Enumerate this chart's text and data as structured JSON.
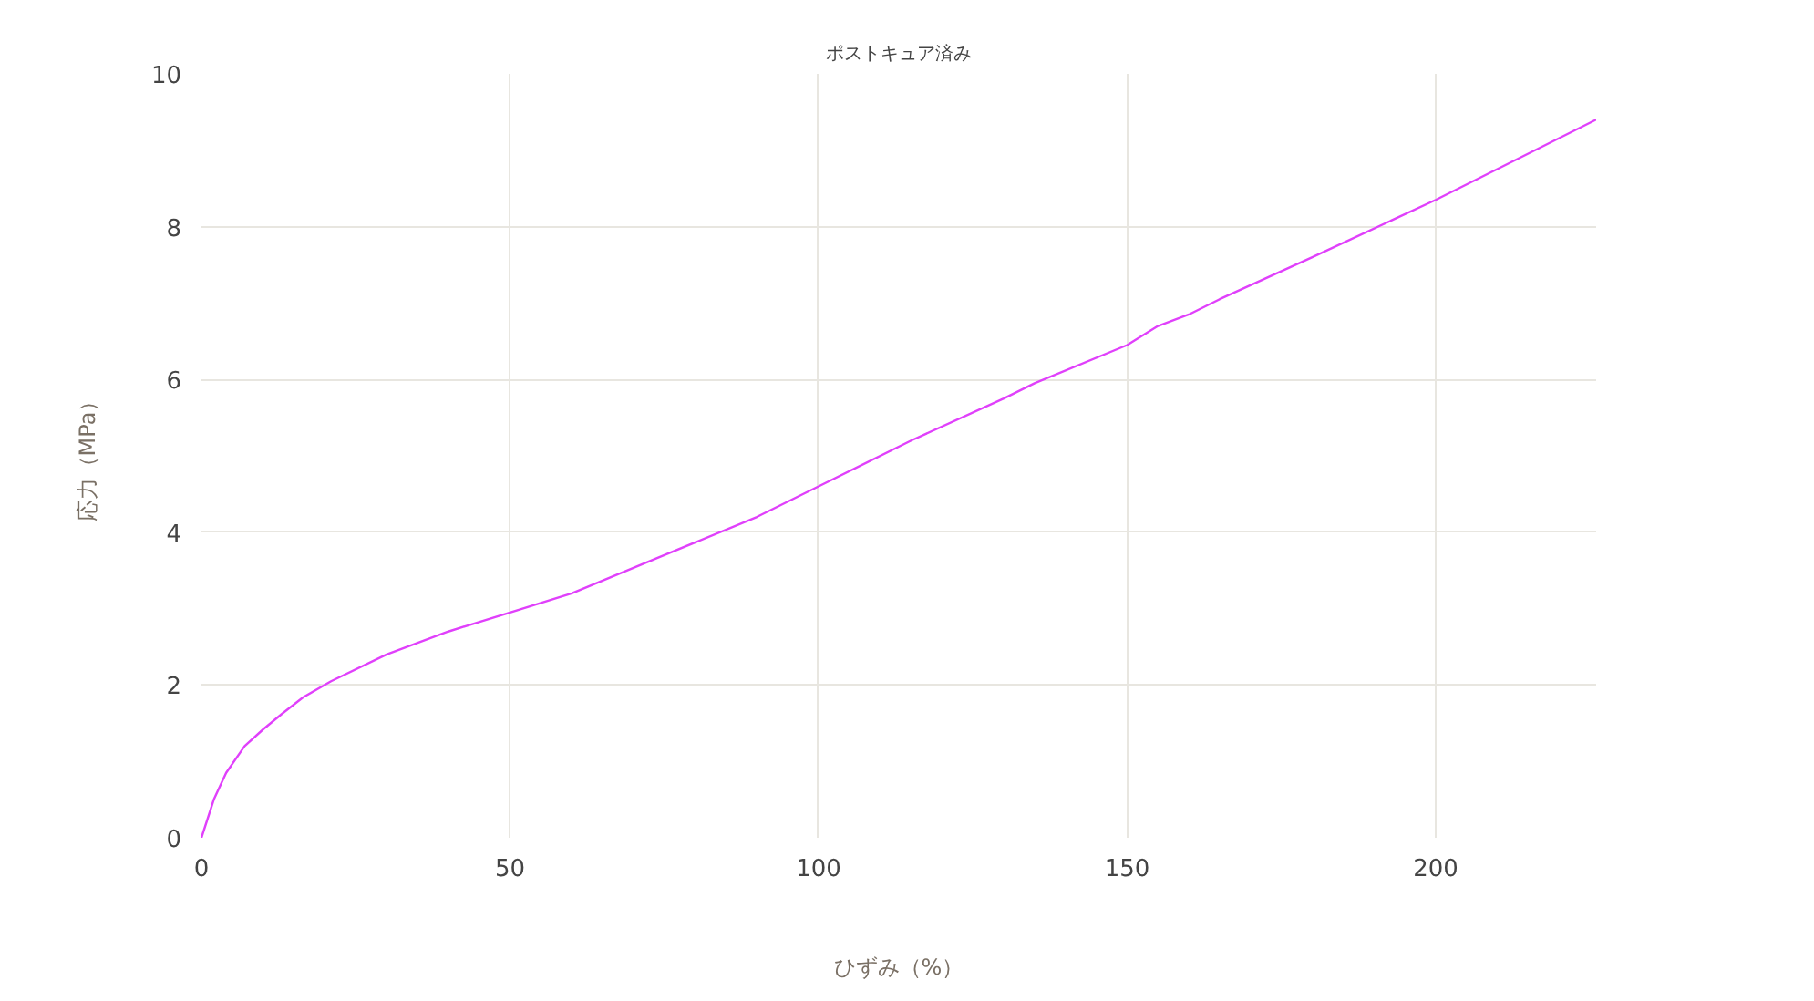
{
  "chart_data": {
    "type": "line",
    "title": "ポストキュア済み",
    "xlabel": "ひずみ（%）",
    "ylabel": "応力（MPa）",
    "x": [
      0,
      2,
      4,
      7,
      10,
      13,
      16.5,
      21,
      30,
      40,
      50,
      60,
      75,
      90,
      100,
      115,
      130,
      135,
      150,
      155,
      160,
      165,
      180,
      200,
      226
    ],
    "series": [
      {
        "color": "#e040fb",
        "values": [
          0,
          0.5,
          0.85,
          1.2,
          1.42,
          1.62,
          1.84,
          2.05,
          2.4,
          2.7,
          2.95,
          3.2,
          3.7,
          4.2,
          4.6,
          5.2,
          5.75,
          5.95,
          6.45,
          6.7,
          6.85,
          7.05,
          7.6,
          8.35,
          9.4
        ]
      }
    ],
    "xlim": [
      0,
      226
    ],
    "ylim": [
      0,
      10
    ],
    "xticks": [
      0,
      50,
      100,
      150,
      200
    ],
    "yticks": [
      0,
      2,
      4,
      6,
      8,
      10
    ],
    "grid": true
  }
}
